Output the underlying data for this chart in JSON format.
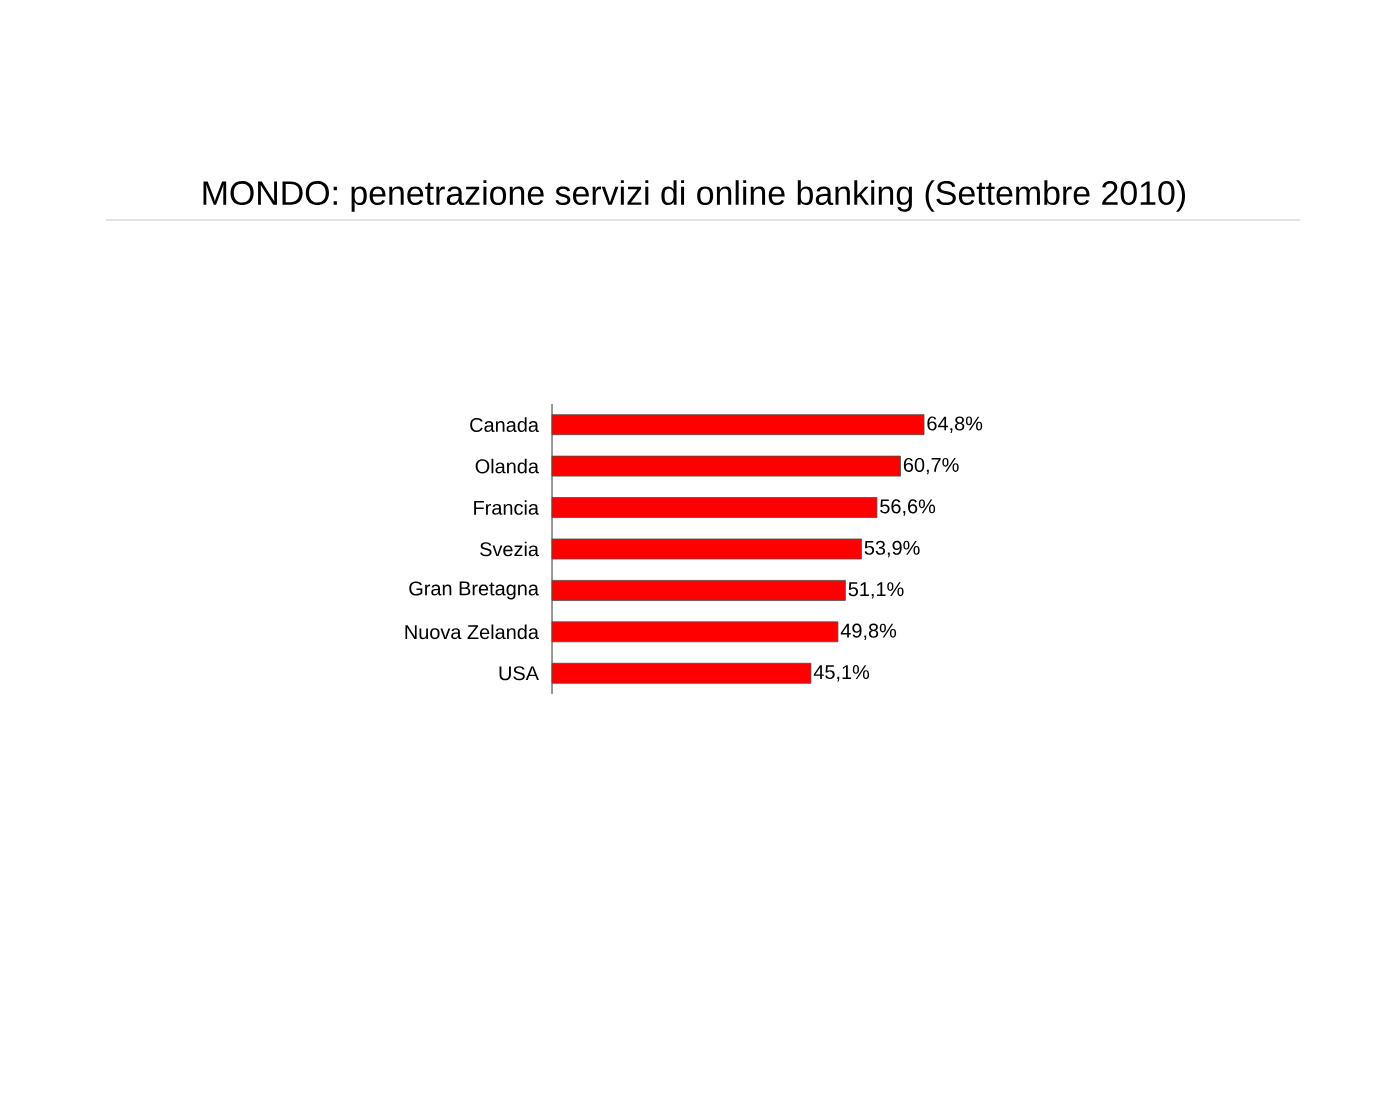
{
  "chart_data": {
    "type": "bar",
    "orientation": "horizontal",
    "title": "MONDO: penetrazione servizi di online banking (Settembre 2010)",
    "categories": [
      "Canada",
      "Olanda",
      "Francia",
      "Svezia",
      "Gran Bretagna",
      "Nuova Zelanda",
      "USA"
    ],
    "values": [
      64.8,
      60.7,
      56.6,
      53.9,
      51.1,
      49.8,
      45.1
    ],
    "value_labels": [
      "64,8%",
      "60,7%",
      "56,6%",
      "53,9%",
      "51,1%",
      "49,8%",
      "45,1%"
    ],
    "color": "#ff0000"
  }
}
